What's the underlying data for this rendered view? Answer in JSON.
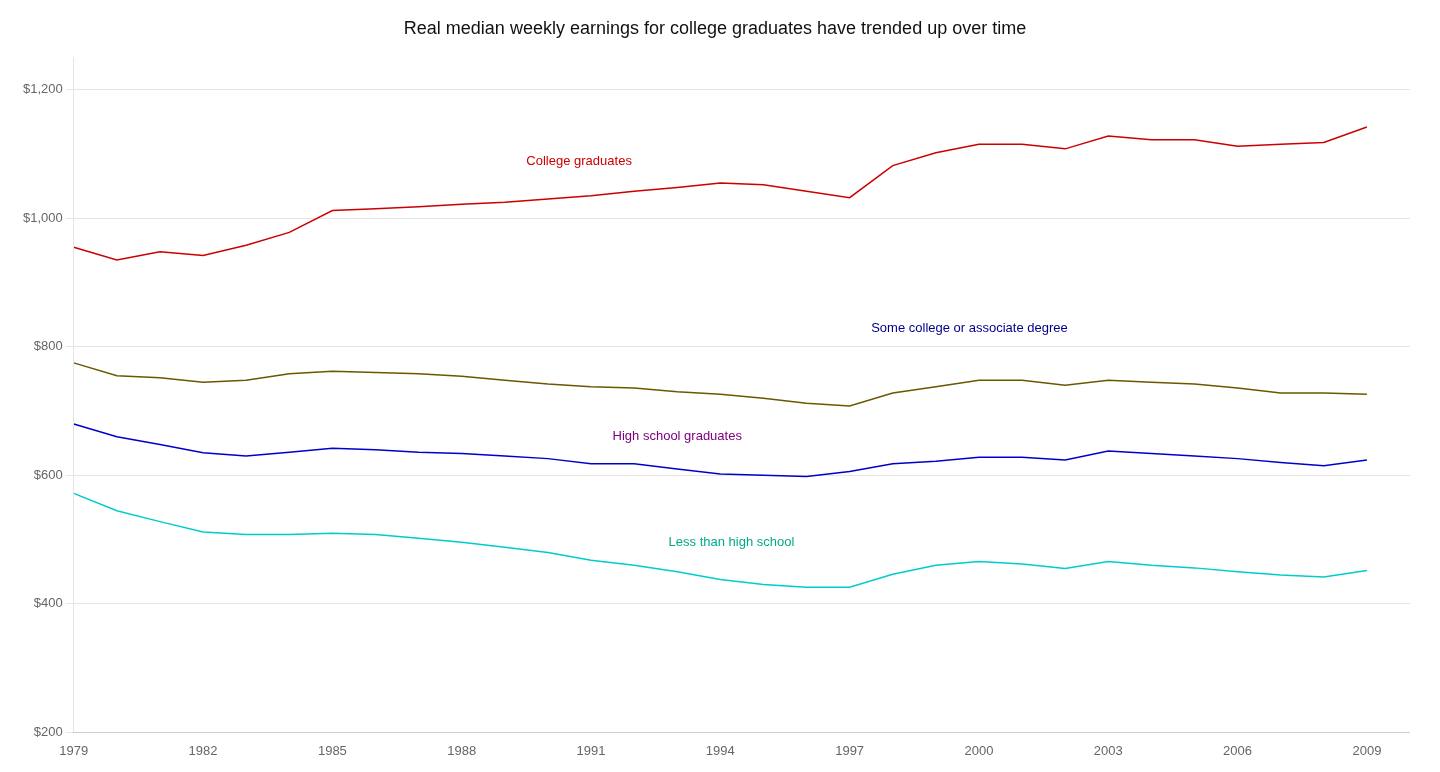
{
  "chart_data": {
    "type": "line",
    "title": "Real median weekly earnings for college graduates have trended up over time",
    "x": [
      1979,
      1980,
      1981,
      1982,
      1983,
      1984,
      1985,
      1986,
      1987,
      1988,
      1989,
      1990,
      1991,
      1992,
      1993,
      1994,
      1995,
      1996,
      1997,
      1998,
      1999,
      2000,
      2001,
      2002,
      2003,
      2004,
      2005,
      2006,
      2007,
      2008,
      2009
    ],
    "series": [
      {
        "name": "College graduates",
        "color": "#cc0000",
        "values": [
          955,
          935,
          948,
          942,
          958,
          978,
          1012,
          1015,
          1018,
          1022,
          1025,
          1030,
          1035,
          1042,
          1048,
          1055,
          1052,
          1042,
          1032,
          1082,
          1102,
          1115,
          1115,
          1108,
          1128,
          1122,
          1122,
          1112,
          1115,
          1118,
          1142
        ]
      },
      {
        "name": "Some college or associate degree",
        "color": "#6b5700",
        "values": [
          775,
          755,
          752,
          745,
          748,
          758,
          762,
          760,
          758,
          754,
          748,
          742,
          738,
          736,
          730,
          726,
          720,
          712,
          708,
          728,
          738,
          748,
          748,
          740,
          748,
          745,
          742,
          736,
          728,
          728,
          726
        ]
      },
      {
        "name": "High school graduates",
        "color": "#0000cc",
        "values": [
          680,
          660,
          648,
          635,
          630,
          636,
          642,
          640,
          636,
          634,
          630,
          626,
          618,
          618,
          610,
          602,
          600,
          598,
          606,
          618,
          622,
          628,
          628,
          624,
          638,
          634,
          630,
          626,
          620,
          615,
          624
        ]
      },
      {
        "name": "Less than high school",
        "color": "#00cccc",
        "values": [
          572,
          545,
          528,
          512,
          508,
          508,
          510,
          508,
          502,
          496,
          488,
          480,
          468,
          460,
          450,
          438,
          430,
          426,
          426,
          446,
          460,
          466,
          462,
          455,
          466,
          460,
          456,
          450,
          445,
          442,
          452
        ]
      }
    ],
    "annotations": [
      {
        "text": "College graduates",
        "x": 1989.5,
        "y": 1075,
        "color": "#cc0000"
      },
      {
        "text": "Some college or associate degree",
        "x": 1997.5,
        "y": 815,
        "color": "#00008b"
      },
      {
        "text": "High school graduates",
        "x": 1991.5,
        "y": 648,
        "color": "#800080"
      },
      {
        "text": "Less than high school",
        "x": 1992.8,
        "y": 482,
        "color": "#00aa88"
      }
    ],
    "xlim": [
      1979,
      2010
    ],
    "xticks": [
      1979,
      1982,
      1985,
      1988,
      1991,
      1994,
      1997,
      2000,
      2003,
      2006,
      2009
    ],
    "ylim": [
      200,
      1250
    ],
    "yticks": [
      {
        "value": 200,
        "label": "$200"
      },
      {
        "value": 400,
        "label": "$400"
      },
      {
        "value": 600,
        "label": "$600"
      },
      {
        "value": 800,
        "label": "$800"
      },
      {
        "value": 1000,
        "label": "$1,000"
      },
      {
        "value": 1200,
        "label": "$1,200"
      }
    ],
    "grid": "y"
  }
}
